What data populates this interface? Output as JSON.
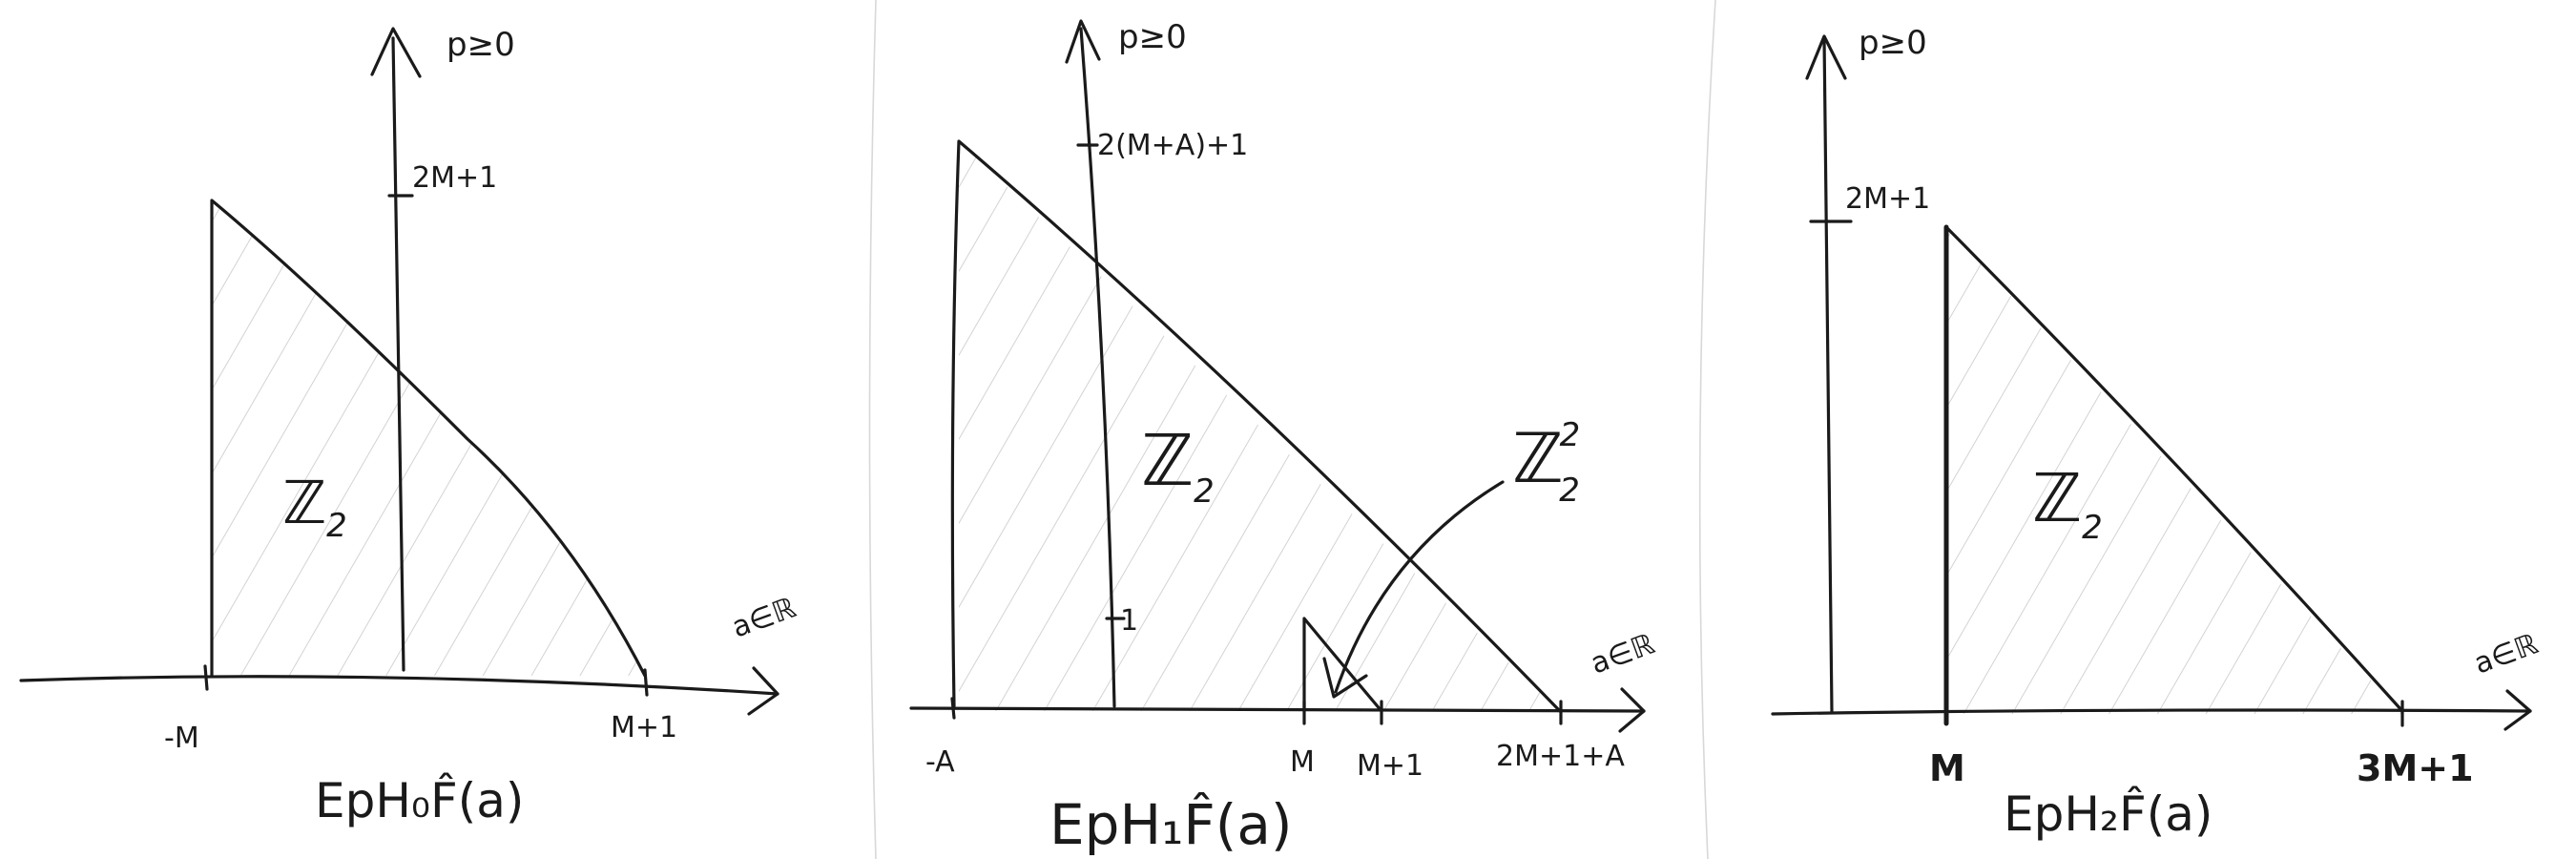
{
  "panels": [
    {
      "axis_label": "p≥0",
      "x_axis_label": "a∈ℝ",
      "y_tick": "2M+1",
      "x_ticks": [
        "-M",
        "M+1"
      ],
      "region_label": "ℤ",
      "region_sub": "2",
      "caption": "EpH₀F̂(a)"
    },
    {
      "axis_label": "p≥0",
      "x_axis_label": "a∈ℝ",
      "y_ticks": [
        "2(M+A)+1",
        "1"
      ],
      "x_ticks": [
        "-A",
        "M",
        "M+1",
        "2M+1+A"
      ],
      "region_label": "ℤ",
      "region_sub": "2",
      "small_region_label": "ℤ",
      "small_region_sub": "2",
      "small_region_sup": "2",
      "caption": "EpH₁F̂(a)"
    },
    {
      "axis_label": "p≥0",
      "x_axis_label": "a∈ℝ",
      "y_tick": "2M+1",
      "x_ticks": [
        "M",
        "3M+1"
      ],
      "region_label": "ℤ",
      "region_sub": "2",
      "caption": "EpH₂F̂(a)"
    }
  ]
}
